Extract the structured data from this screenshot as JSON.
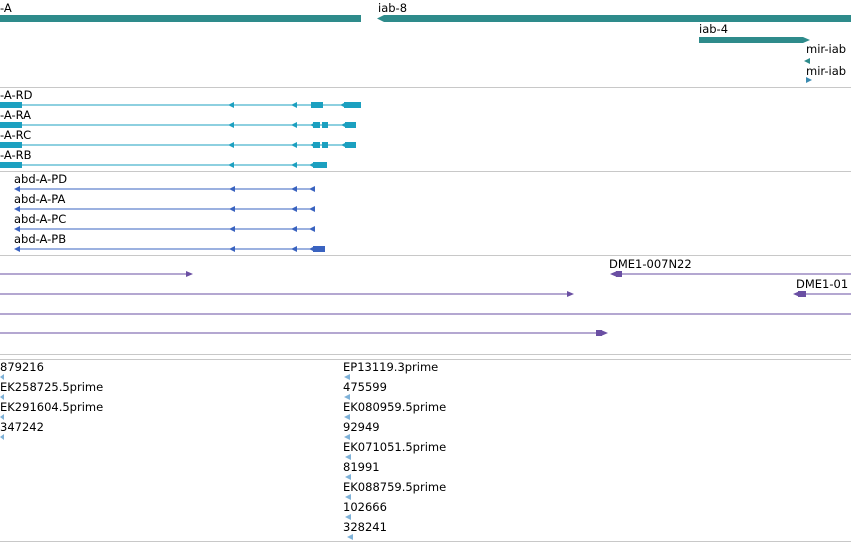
{
  "colors": {
    "gene_track": "#2e8b8b",
    "transcript": "#1ca0c0",
    "protein": "#3a63c0",
    "clone": "#6a4fa3",
    "est": "#7fb2d8",
    "divider": "#c8c8c8"
  },
  "genes": {
    "abd_A": "-A",
    "iab8": "iab-8",
    "iab4": "iab-4",
    "mir_iab_1": "mir-iab",
    "mir_iab_2": "mir-iab"
  },
  "transcripts": [
    "-A-RD",
    "-A-RA",
    "-A-RC",
    "-A-RB"
  ],
  "proteins": [
    "abd-A-PD",
    "abd-A-PA",
    "abd-A-PC",
    "abd-A-PB"
  ],
  "clones": {
    "c1": "DME1-007N22",
    "c2": "DME1-01"
  },
  "ests_left": [
    "879216",
    "EK258725.5prime",
    "EK291604.5prime",
    "347242"
  ],
  "ests_mid": [
    "EP13119.3prime",
    "475599",
    "EK080959.5prime",
    "92949",
    "EK071051.5prime",
    "81991",
    "EK088759.5prime",
    "102666",
    "328241"
  ]
}
